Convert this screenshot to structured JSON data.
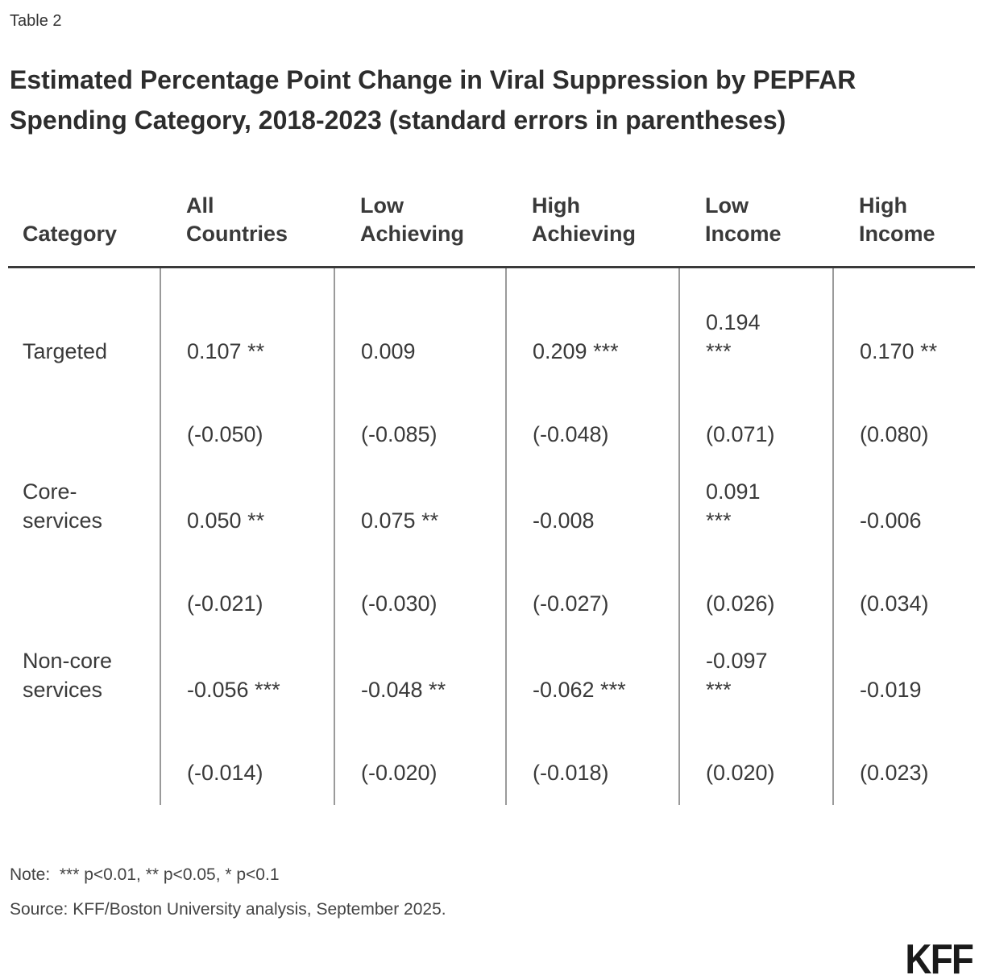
{
  "table_label": "Table 2",
  "title": "Estimated Percentage Point Change in Viral Suppression by PEPFAR Spending Category, 2018-2023 (standard errors in parentheses)",
  "chart_data": {
    "type": "table",
    "title": "Estimated Percentage Point Change in Viral Suppression by PEPFAR Spending Category, 2018-2023 (standard errors in parentheses)",
    "columns": [
      "Category",
      "All\nCountries",
      "Low\nAchieving",
      "High\nAchieving",
      "Low\nIncome",
      "High\nIncome"
    ],
    "rows": [
      {
        "category": "Targeted",
        "estimates": [
          "0.107 **",
          "0.009",
          "0.209 ***",
          "0.194\n***",
          "0.170 **"
        ],
        "standard_errors": [
          "(-0.050)",
          "(-0.085)",
          "(-0.048)",
          "(0.071)",
          "(0.080)"
        ]
      },
      {
        "category": "Core-\nservices",
        "estimates": [
          "0.050 **",
          "0.075 **",
          "-0.008",
          "0.091\n***",
          "-0.006"
        ],
        "standard_errors": [
          "(-0.021)",
          "(-0.030)",
          "(-0.027)",
          "(0.026)",
          "(0.034)"
        ]
      },
      {
        "category": "Non-core\nservices",
        "estimates": [
          "-0.056 ***",
          "-0.048 **",
          "-0.062 ***",
          "-0.097\n***",
          "-0.019"
        ],
        "standard_errors": [
          "(-0.014)",
          "(-0.020)",
          "(-0.018)",
          "(0.020)",
          "(0.023)"
        ]
      }
    ],
    "legend": "*** p<0.01, ** p<0.05, * p<0.1"
  },
  "footer": {
    "note": "Note:  *** p<0.01, ** p<0.05, * p<0.1",
    "source": "Source: KFF/Boston University analysis, September 2025.",
    "logo": "KFF"
  },
  "colors": {
    "text": "#3a3a3a",
    "title": "#2d2d2d",
    "header_rule": "#3a3a3a",
    "column_rule": "#9a9a9a",
    "logo": "#1a1a1a"
  }
}
